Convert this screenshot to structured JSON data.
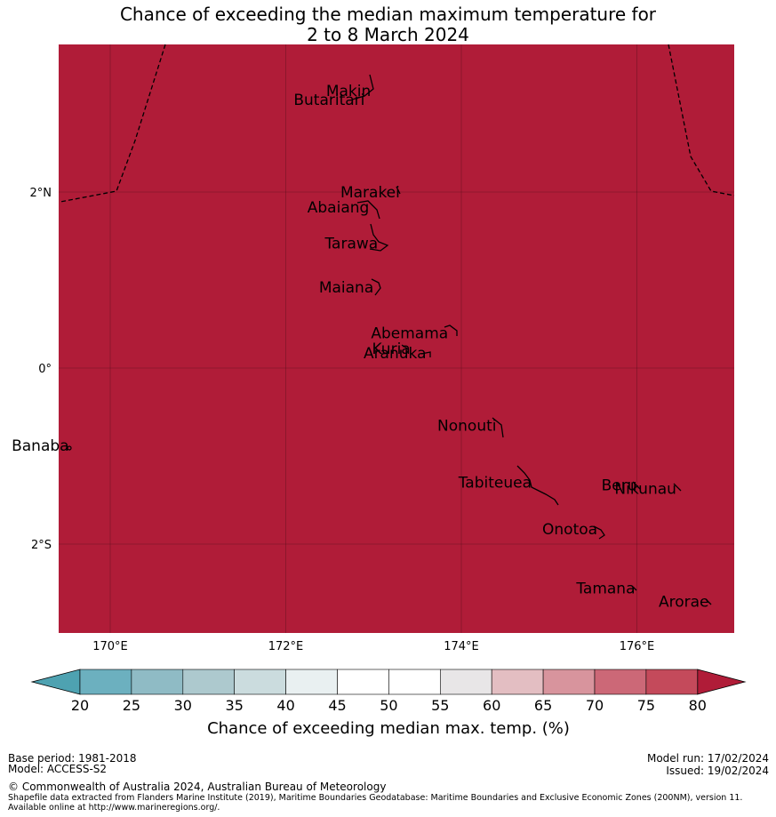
{
  "title_line1": "Chance of exceeding the median maximum temperature for",
  "title_line2": "2 to 8 March 2024",
  "map": {
    "fill_color": "#b01c38",
    "lon_ticks": [
      {
        "value": 170,
        "label": "170°E"
      },
      {
        "value": 172,
        "label": "172°E"
      },
      {
        "value": 174,
        "label": "174°E"
      },
      {
        "value": 176,
        "label": "176°E"
      }
    ],
    "lat_ticks": [
      {
        "value": 2,
        "label": "2°N"
      },
      {
        "value": 0,
        "label": "0°"
      },
      {
        "value": -2,
        "label": "2°S"
      }
    ],
    "islands": [
      {
        "name": "Makin",
        "lon": 172.97,
        "lat": 3.15
      },
      {
        "name": "Butaritari",
        "lon": 172.9,
        "lat": 3.05
      },
      {
        "name": "Marakei",
        "lon": 173.3,
        "lat": 2.0
      },
      {
        "name": "Abaiang",
        "lon": 172.95,
        "lat": 1.83
      },
      {
        "name": "Tarawa",
        "lon": 173.05,
        "lat": 1.42
      },
      {
        "name": "Maiana",
        "lon": 173.0,
        "lat": 0.92
      },
      {
        "name": "Abemama",
        "lon": 173.85,
        "lat": 0.4
      },
      {
        "name": "Kuria",
        "lon": 173.42,
        "lat": 0.22
      },
      {
        "name": "Aranuka",
        "lon": 173.6,
        "lat": 0.17
      },
      {
        "name": "Nonouti",
        "lon": 174.4,
        "lat": -0.65
      },
      {
        "name": "Banaba",
        "lon": 169.53,
        "lat": -0.88
      },
      {
        "name": "Tabiteuea",
        "lon": 174.8,
        "lat": -1.3
      },
      {
        "name": "Beru",
        "lon": 176.0,
        "lat": -1.33
      },
      {
        "name": "Nikunau",
        "lon": 176.45,
        "lat": -1.37
      },
      {
        "name": "Onotoa",
        "lon": 175.55,
        "lat": -1.83
      },
      {
        "name": "Tamana",
        "lon": 175.98,
        "lat": -2.5
      },
      {
        "name": "Arorae",
        "lon": 176.82,
        "lat": -2.65
      }
    ]
  },
  "colorbar": {
    "label": "Chance of exceeding median max. temp. (%)",
    "ticks": [
      "20",
      "25",
      "30",
      "35",
      "40",
      "45",
      "50",
      "55",
      "60",
      "65",
      "70",
      "75",
      "80"
    ],
    "colors": [
      "#4ea2b1",
      "#6cb0bf",
      "#8fbbc5",
      "#adc9ce",
      "#cbdcde",
      "#e9f0f1",
      "#ffffff",
      "#ffffff",
      "#e8e6e7",
      "#e3bec2",
      "#d8949d",
      "#cc6877",
      "#c44a5b",
      "#b01c38"
    ]
  },
  "footer": {
    "base_period": "Base period: 1981-2018",
    "model": "Model: ACCESS-S2",
    "model_run": "Model run: 17/02/2024",
    "issued": "Issued: 19/02/2024",
    "copyright": "© Commonwealth of Australia 2024, Australian Bureau of Meteorology",
    "shapefile": "Shapefile data extracted from Flanders Marine Institute (2019), Maritime Boundaries Geodatabase: Maritime Boundaries and Exclusive Economic Zones (200NM), version 11. Available online at http://www.marineregions.org/."
  }
}
